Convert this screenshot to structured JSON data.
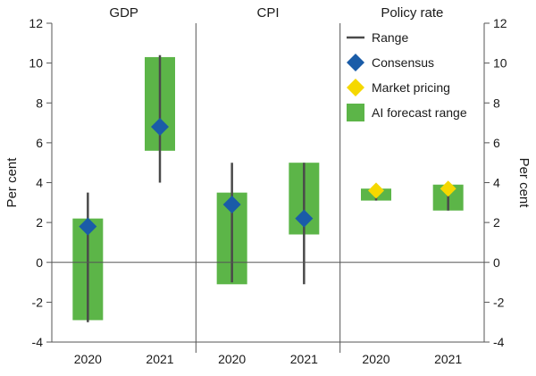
{
  "chart_data": {
    "type": "bar",
    "ylabel_left": "Per cent",
    "ylabel_right": "Per cent",
    "ylim": [
      -4,
      12
    ],
    "yticks": [
      -4,
      -2,
      0,
      2,
      4,
      6,
      8,
      10,
      12
    ],
    "grid": false,
    "legend_position": "top-right",
    "legend": [
      {
        "label": "Range",
        "marker": "line"
      },
      {
        "label": "Consensus",
        "marker": "diamond-blue"
      },
      {
        "label": "Market pricing",
        "marker": "diamond-yellow"
      },
      {
        "label": "AI forecast range",
        "marker": "square-green"
      }
    ],
    "colors": {
      "ai_range": "#5cb548",
      "range": "#4a4a4a",
      "consensus": "#1a5ca8",
      "market": "#f5d800",
      "axis": "#555555"
    },
    "panels": [
      {
        "title": "GDP",
        "categories": [
          "2020",
          "2021"
        ],
        "ai_range": [
          [
            -2.9,
            2.2
          ],
          [
            5.6,
            10.3
          ]
        ],
        "range": [
          [
            -3.0,
            3.5
          ],
          [
            4.0,
            10.4
          ]
        ],
        "consensus": [
          1.8,
          6.8
        ],
        "market_pricing": [
          null,
          null
        ]
      },
      {
        "title": "CPI",
        "categories": [
          "2020",
          "2021"
        ],
        "ai_range": [
          [
            -1.1,
            3.5
          ],
          [
            1.4,
            5.0
          ]
        ],
        "range": [
          [
            -1.0,
            5.0
          ],
          [
            -1.1,
            5.0
          ]
        ],
        "consensus": [
          2.9,
          2.2
        ],
        "market_pricing": [
          null,
          null
        ]
      },
      {
        "title": "Policy rate",
        "categories": [
          "2020",
          "2021"
        ],
        "ai_range": [
          [
            3.1,
            3.7
          ],
          [
            2.6,
            3.9
          ]
        ],
        "range": [
          [
            3.1,
            3.7
          ],
          [
            2.6,
            3.9
          ]
        ],
        "consensus": [
          null,
          null
        ],
        "market_pricing": [
          3.6,
          3.7
        ]
      }
    ]
  }
}
